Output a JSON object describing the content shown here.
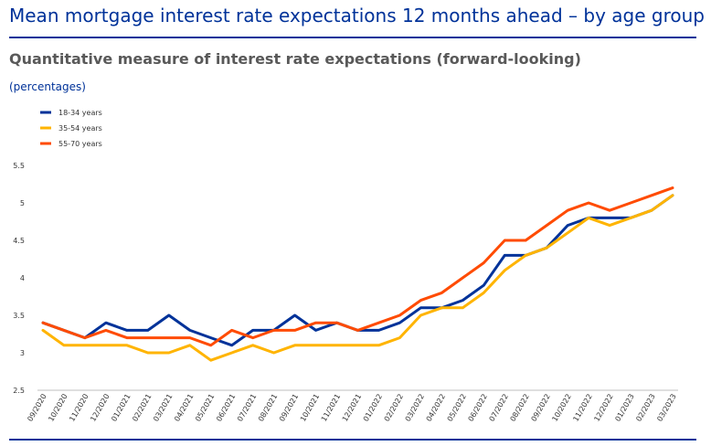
{
  "header": {
    "title": "Mean mortgage interest rate expectations 12 months ahead – by age group",
    "subtitle": "Quantitative measure of interest rate expectations (forward-looking)",
    "unit_label": "(percentages)"
  },
  "chart_data": {
    "type": "line",
    "title": "Mean mortgage interest rate expectations 12 months ahead – by age group",
    "subtitle": "Quantitative measure of interest rate expectations (forward-looking)",
    "ylabel": "(percentages)",
    "xlabel": "",
    "ylim": [
      2.5,
      5.5
    ],
    "yticks": [
      "2.5",
      "3",
      "3.5",
      "4",
      "4.5",
      "5",
      "5.5"
    ],
    "grid": false,
    "legend_position": "top-left",
    "x": [
      "09/2020",
      "10/2020",
      "11/2020",
      "12/2020",
      "01/2021",
      "02/2021",
      "03/2021",
      "04/2021",
      "05/2021",
      "06/2021",
      "07/2021",
      "08/2021",
      "09/2021",
      "10/2021",
      "11/2021",
      "12/2021",
      "01/2022",
      "02/2022",
      "03/2022",
      "04/2022",
      "05/2022",
      "06/2022",
      "07/2022",
      "08/2022",
      "09/2022",
      "10/2022",
      "11/2022",
      "12/2022",
      "01/2023",
      "02/2023",
      "03/2023"
    ],
    "series": [
      {
        "name": "18-34 years",
        "color": "#003299",
        "values": [
          3.4,
          3.3,
          3.2,
          3.4,
          3.3,
          3.3,
          3.5,
          3.3,
          3.2,
          3.1,
          3.3,
          3.3,
          3.5,
          3.3,
          3.4,
          3.3,
          3.3,
          3.4,
          3.6,
          3.6,
          3.7,
          3.9,
          4.3,
          4.3,
          4.4,
          4.7,
          4.8,
          4.8,
          4.8,
          4.9,
          5.1
        ]
      },
      {
        "name": "35-54 years",
        "color": "#FFB400",
        "values": [
          3.3,
          3.1,
          3.1,
          3.1,
          3.1,
          3.0,
          3.0,
          3.1,
          2.9,
          3.0,
          3.1,
          3.0,
          3.1,
          3.1,
          3.1,
          3.1,
          3.1,
          3.2,
          3.5,
          3.6,
          3.6,
          3.8,
          4.1,
          4.3,
          4.4,
          4.6,
          4.8,
          4.7,
          4.8,
          4.9,
          5.1
        ]
      },
      {
        "name": "55-70 years",
        "color": "#FF4B00",
        "values": [
          3.4,
          3.3,
          3.2,
          3.3,
          3.2,
          3.2,
          3.2,
          3.2,
          3.1,
          3.3,
          3.2,
          3.3,
          3.3,
          3.4,
          3.4,
          3.3,
          3.4,
          3.5,
          3.7,
          3.8,
          4.0,
          4.2,
          4.5,
          4.5,
          4.7,
          4.9,
          5.0,
          4.9,
          5.0,
          5.1,
          5.2
        ]
      }
    ]
  }
}
